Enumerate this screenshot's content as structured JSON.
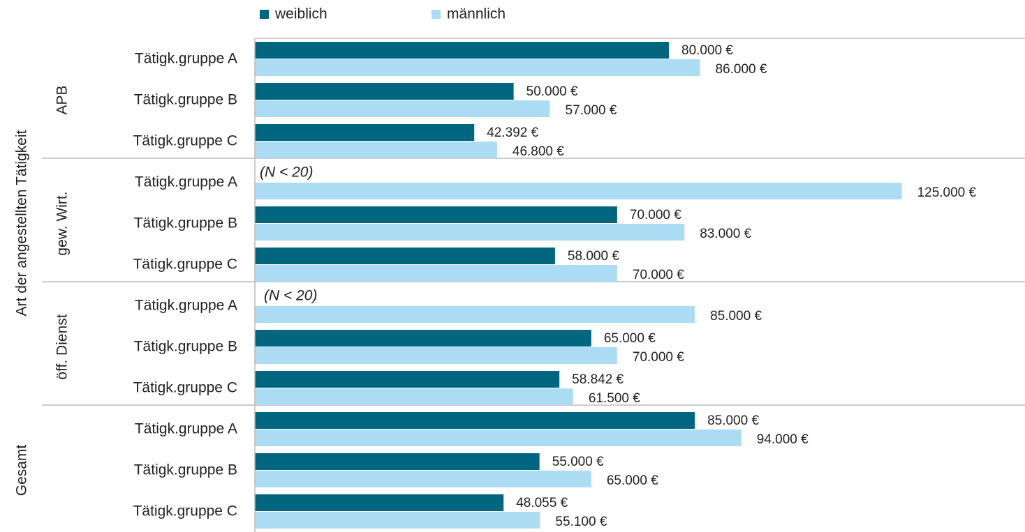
{
  "chart_data": {
    "type": "hbar",
    "y_label": "Art der angestellten Tätigkeit",
    "groups": [
      {
        "label": "APB",
        "categories": [
          "Tätigk.gruppe A",
          "Tätigk.gruppe B",
          "Tätigk.gruppe C"
        ]
      },
      {
        "label": "gew. Wirt.",
        "categories": [
          "Tätigk.gruppe A",
          "Tätigk.gruppe B",
          "Tätigk.gruppe C"
        ]
      },
      {
        "label": "öff. Dienst",
        "categories": [
          "Tätigk.gruppe A",
          "Tätigk.gruppe B",
          "Tätigk.gruppe C"
        ]
      },
      {
        "label": "Gesamt",
        "categories": [
          "Tätigk.gruppe A",
          "Tätigk.gruppe B",
          "Tätigk.gruppe C"
        ]
      }
    ],
    "series": [
      {
        "name": "weiblich",
        "color": "#006680",
        "values": [
          80000,
          50000,
          42392,
          null,
          70000,
          58000,
          null,
          65000,
          58842,
          85000,
          55000,
          48055
        ],
        "value_labels": [
          "80.000 €",
          "50.000 €",
          "42.392 €",
          null,
          "70.000 €",
          "58.000 €",
          null,
          "65.000 €",
          "58.842 €",
          "85.000 €",
          "55.000 €",
          "48.055 €"
        ]
      },
      {
        "name": "männlich",
        "color": "#acdcf4",
        "values": [
          86000,
          57000,
          46800,
          125000,
          83000,
          70000,
          85000,
          70000,
          61500,
          94000,
          65000,
          55100
        ],
        "value_labels": [
          "86.000 €",
          "57.000 €",
          "46.800 €",
          "125.000 €",
          "83.000 €",
          "70.000 €",
          "85.000 €",
          "70.000 €",
          "61.500 €",
          "94.000 €",
          "65.000 €",
          "55.100 €"
        ]
      }
    ],
    "annotations": [
      "(N < 20)",
      "(N < 20)"
    ],
    "legend": "top"
  }
}
